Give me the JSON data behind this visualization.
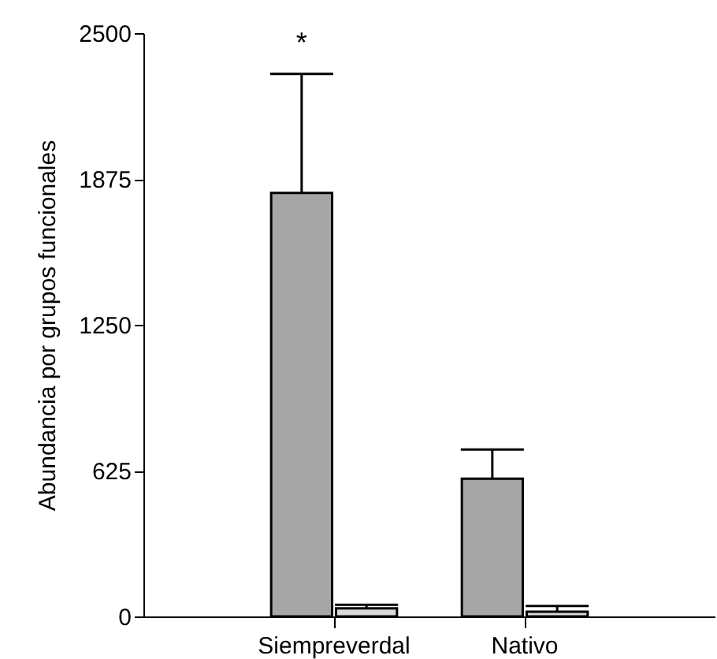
{
  "chart_data": {
    "type": "bar",
    "ylabel": "Abundancia por grupos funcionales",
    "categories": [
      "Siempreverdal",
      "Nativo"
    ],
    "series": [
      {
        "color": "#a6a6a6",
        "values": [
          1815,
          590
        ],
        "errors": [
          [
            1815,
            2325
          ],
          [
            590,
            715
          ]
        ]
      },
      {
        "color": "#d9d9d9",
        "values": [
          35,
          20
        ],
        "errors": [
          [
            35,
            50
          ],
          [
            20,
            45
          ]
        ]
      }
    ],
    "ylim": [
      0,
      2500
    ],
    "yticks": [
      0,
      625,
      1250,
      1875,
      2500
    ],
    "grid": false,
    "annotations": [
      "*"
    ]
  }
}
